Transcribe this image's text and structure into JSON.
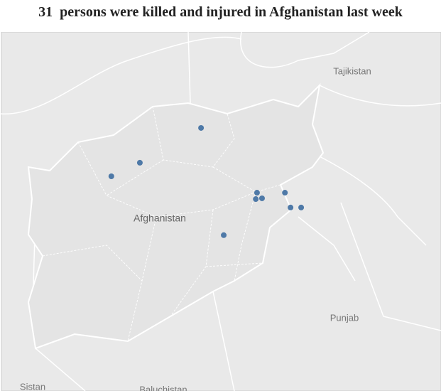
{
  "header": {
    "title": "31  persons were killed and injured in Afghanistan last week"
  },
  "map": {
    "extent": {
      "lonlim": [
        56.85,
        78.04
      ],
      "latlim": [
        26.72,
        40.75
      ]
    },
    "labels": {
      "tajikistan": "Tajikistan",
      "afghanistan": "Afghanistan",
      "punjab": "Punjab",
      "sistan": "Sistan",
      "baluchistan": "Baluchistan"
    },
    "point_color": "#4e79a7",
    "points": [
      {
        "lon": 62.2,
        "lat": 35.11
      },
      {
        "lon": 63.57,
        "lat": 35.64
      },
      {
        "lon": 66.51,
        "lat": 37.0
      },
      {
        "lon": 69.2,
        "lat": 34.47
      },
      {
        "lon": 69.14,
        "lat": 34.22
      },
      {
        "lon": 69.44,
        "lat": 34.25
      },
      {
        "lon": 70.54,
        "lat": 34.47
      },
      {
        "lon": 70.81,
        "lat": 33.89
      },
      {
        "lon": 71.32,
        "lat": 33.89
      },
      {
        "lon": 67.6,
        "lat": 32.81
      }
    ]
  }
}
